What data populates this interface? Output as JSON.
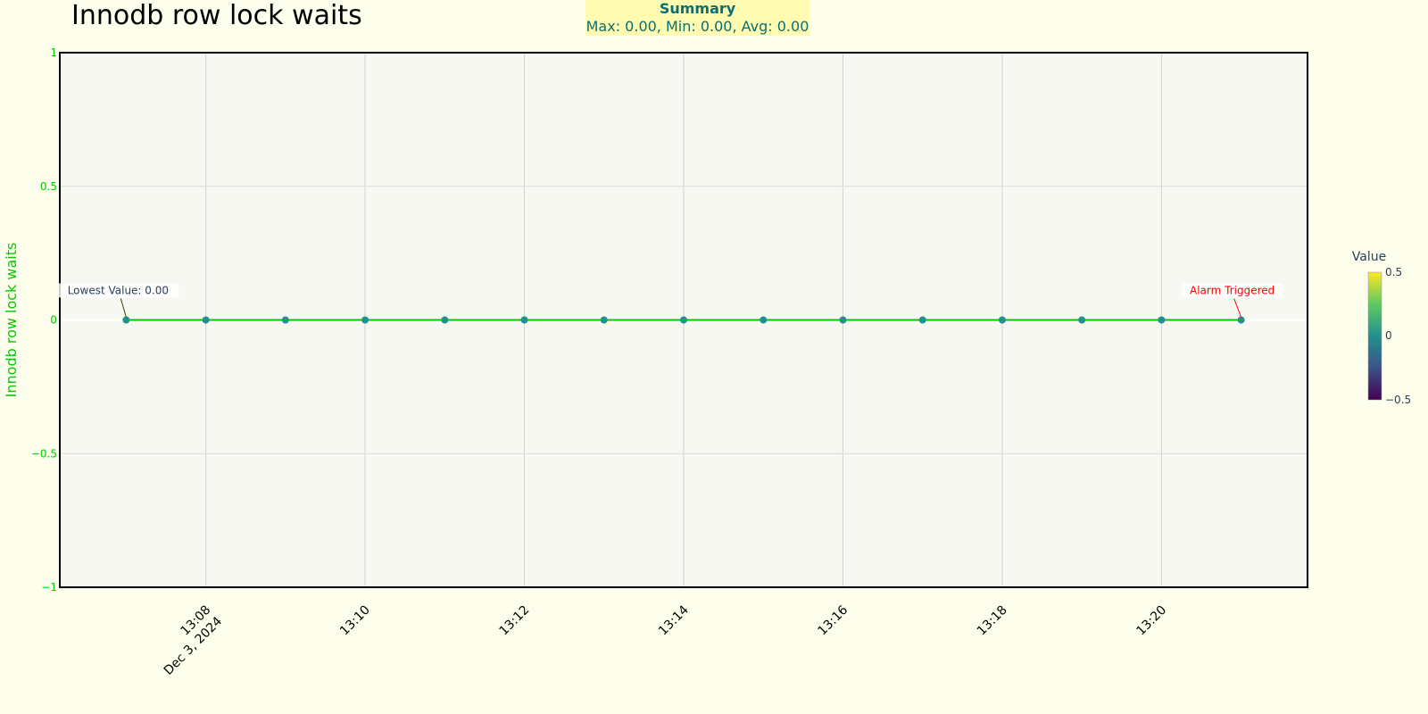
{
  "chart_data": {
    "type": "line",
    "title": "Innodb row lock waits",
    "ylabel": "Innodb row lock waits",
    "xlabel": "",
    "x": [
      "13:07",
      "13:08",
      "13:09",
      "13:10",
      "13:11",
      "13:12",
      "13:13",
      "13:14",
      "13:15",
      "13:16",
      "13:17",
      "13:18",
      "13:19",
      "13:20",
      "13:21"
    ],
    "values": [
      0,
      0,
      0,
      0,
      0,
      0,
      0,
      0,
      0,
      0,
      0,
      0,
      0,
      0,
      0
    ],
    "x_date": "Dec 3, 2024",
    "xlim": [
      "13:06:10",
      "13:21:50"
    ],
    "ylim": [
      -1,
      1
    ],
    "x_ticks": [
      "13:08",
      "13:10",
      "13:12",
      "13:14",
      "13:16",
      "13:18",
      "13:20"
    ],
    "y_ticks": [
      "−1",
      "−0.5",
      "0",
      "0.5",
      "1"
    ],
    "y_tick_values": [
      -1,
      -0.5,
      0,
      0.5,
      1
    ],
    "grid": true,
    "line_color": "#00cc00",
    "marker_color": "#21918c",
    "axis_label_color": "#00cc00",
    "plot_bg": "#f6f8f1",
    "annotations": [
      {
        "text": "Lowest Value: 0.00",
        "x": "13:07",
        "y": 0,
        "color": "#2a3f5f"
      },
      {
        "text": "Alarm Triggered",
        "x": "13:21",
        "y": 0,
        "color": "#ff0000"
      }
    ],
    "colorbar": {
      "title": "Value",
      "ticks": [
        "0.5",
        "0",
        "−0.5"
      ],
      "range": [
        -0.5,
        0.5
      ],
      "colorscale": "viridis"
    }
  },
  "summary": {
    "heading": "Summary",
    "text": "Max: 0.00, Min: 0.00, Avg: 0.00"
  }
}
